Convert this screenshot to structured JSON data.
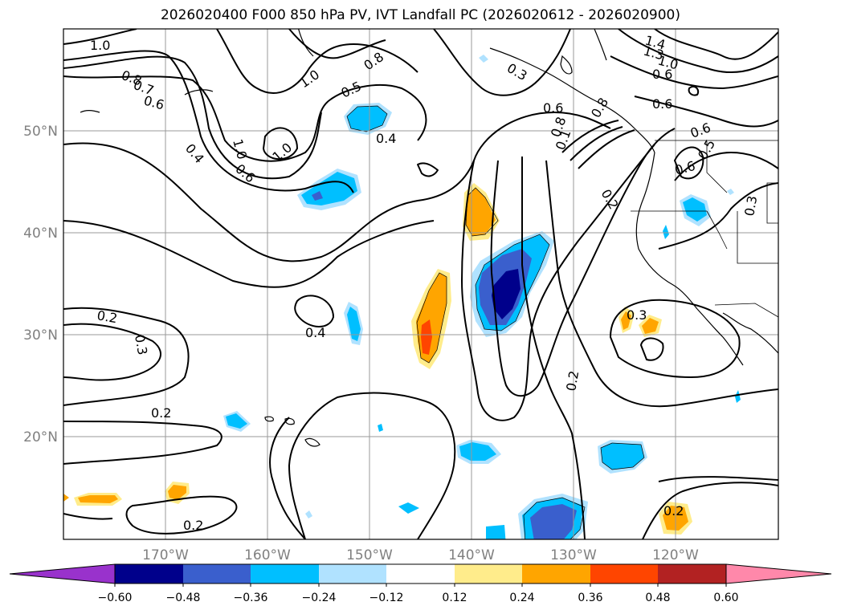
{
  "title": "2026020400 F000 850 hPa PV, IVT Landfall PC (2026020612 - 2026020900)",
  "lon_labels": [
    "170°W",
    "160°W",
    "150°W",
    "140°W",
    "130°W",
    "120°W"
  ],
  "lat_labels": [
    "50°N",
    "40°N",
    "30°N",
    "20°N"
  ],
  "contour_labels": [
    "1.0",
    "0.8",
    "0.7",
    "0.6",
    "0.4",
    "0.2",
    "0.3",
    "0.2",
    "0.2",
    "1.0",
    "1.0",
    "0.6",
    "0.8",
    "0.5",
    "0.4",
    "0.4",
    "0.3",
    "0.8",
    "0.1",
    "0.2",
    "0.2",
    "0.3",
    "0.2",
    "1.4",
    "1.3",
    "1.0",
    "0.6",
    "0.6",
    "0.6",
    "0.5",
    "0.6",
    "0.3",
    "0.6",
    "1.0",
    "0.8"
  ],
  "colorbar": {
    "ticks": [
      "−0.60",
      "−0.48",
      "−0.36",
      "−0.24",
      "−0.12",
      "0.12",
      "0.24",
      "0.36",
      "0.48",
      "0.60"
    ],
    "colors": [
      "#9932cc",
      "#00008b",
      "#3a5fcd",
      "#00bfff",
      "#b0e2ff",
      "#ffffff",
      "#ffec8b",
      "#ffa500",
      "#ff4500",
      "#b22222",
      "#ff88aa"
    ]
  },
  "colors": {
    "neg_dark": "#00008b",
    "neg_mid": "#3a5fcd",
    "neg_light": "#00bfff",
    "neg_pale": "#b0e2ff",
    "pos_pale": "#ffec8b",
    "pos_mid": "#ffa500",
    "pos_dark": "#ff4500"
  }
}
